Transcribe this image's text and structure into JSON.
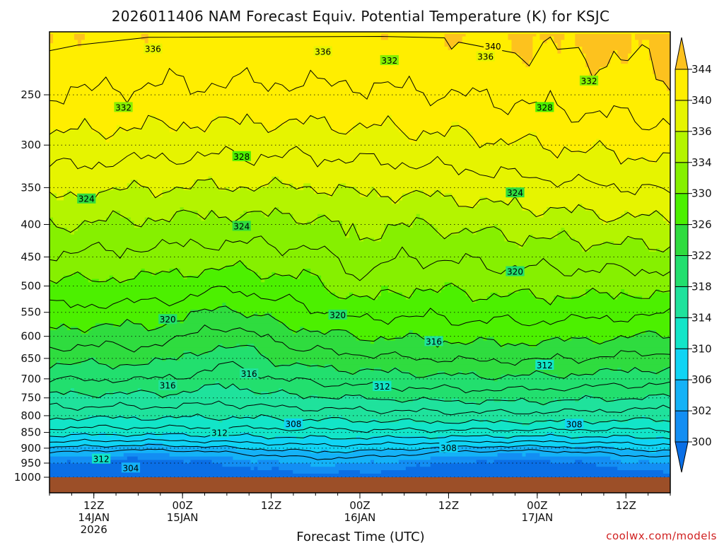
{
  "title": "2026011406 NAM Forecast Equiv. Potential Temperature (K) for KSJC",
  "xlabel": "Forecast Time (UTC)",
  "credit": "coolwx.com/models",
  "chart_data": {
    "type": "heatmap",
    "title": "2026011406 NAM Forecast Equiv. Potential Temperature (K) for KSJC",
    "xlabel": "Forecast Time (UTC)",
    "ylabel": "",
    "y_axis": {
      "scale": "log-pressure",
      "direction": "pressure decreasing upward",
      "ticks": [
        250,
        300,
        350,
        400,
        450,
        500,
        550,
        600,
        650,
        700,
        750,
        800,
        850,
        900,
        950,
        1000
      ],
      "range": [
        1000,
        200
      ]
    },
    "x_axis": {
      "ticks": [
        {
          "hours": 6,
          "label": [
            "12Z",
            "14JAN",
            "2026"
          ]
        },
        {
          "hours": 18,
          "label": [
            "00Z",
            "15JAN"
          ]
        },
        {
          "hours": 30,
          "label": [
            "12Z"
          ]
        },
        {
          "hours": 42,
          "label": [
            "00Z",
            "16JAN"
          ]
        },
        {
          "hours": 54,
          "label": [
            "12Z"
          ]
        },
        {
          "hours": 66,
          "label": [
            "00Z",
            "17JAN"
          ]
        },
        {
          "hours": 78,
          "label": [
            "12Z"
          ]
        }
      ],
      "range_hours": [
        0,
        84
      ]
    },
    "colorbar": {
      "levels": [
        300,
        302,
        306,
        310,
        314,
        318,
        322,
        326,
        330,
        334,
        336,
        340,
        344
      ],
      "colors": [
        "#0a6fe6",
        "#138ef3",
        "#14b2f7",
        "#10d4f4",
        "#12e5c8",
        "#1fe29c",
        "#22df6e",
        "#2fdc3f",
        "#4cf000",
        "#86f000",
        "#b4f400",
        "#e6f400",
        "#ffee00",
        "#fdc21e"
      ],
      "extends": "both"
    },
    "contour_interval": 2,
    "contour_labels": [
      {
        "value": 340,
        "hours": 60,
        "p": 210
      },
      {
        "value": 336,
        "hours": 14,
        "p": 212
      },
      {
        "value": 336,
        "hours": 37,
        "p": 214
      },
      {
        "value": 336,
        "hours": 59,
        "p": 218
      },
      {
        "value": 332,
        "hours": 46,
        "p": 221
      },
      {
        "value": 332,
        "hours": 73,
        "p": 238
      },
      {
        "value": 332,
        "hours": 10,
        "p": 262
      },
      {
        "value": 328,
        "hours": 67,
        "p": 262
      },
      {
        "value": 328,
        "hours": 26,
        "p": 313
      },
      {
        "value": 324,
        "hours": 5,
        "p": 365
      },
      {
        "value": 324,
        "hours": 63,
        "p": 357
      },
      {
        "value": 324,
        "hours": 26,
        "p": 403
      },
      {
        "value": 320,
        "hours": 63,
        "p": 475
      },
      {
        "value": 320,
        "hours": 16,
        "p": 565
      },
      {
        "value": 320,
        "hours": 39,
        "p": 556
      },
      {
        "value": 316,
        "hours": 52,
        "p": 612
      },
      {
        "value": 316,
        "hours": 27,
        "p": 688
      },
      {
        "value": 316,
        "hours": 16,
        "p": 718
      },
      {
        "value": 312,
        "hours": 67,
        "p": 667
      },
      {
        "value": 312,
        "hours": 45,
        "p": 720
      },
      {
        "value": 312,
        "hours": 23,
        "p": 852
      },
      {
        "value": 312,
        "hours": 7,
        "p": 937
      },
      {
        "value": 308,
        "hours": 71,
        "p": 826
      },
      {
        "value": 308,
        "hours": 33,
        "p": 825
      },
      {
        "value": 308,
        "hours": 54,
        "p": 900
      },
      {
        "value": 304,
        "hours": 11,
        "p": 968
      }
    ]
  }
}
